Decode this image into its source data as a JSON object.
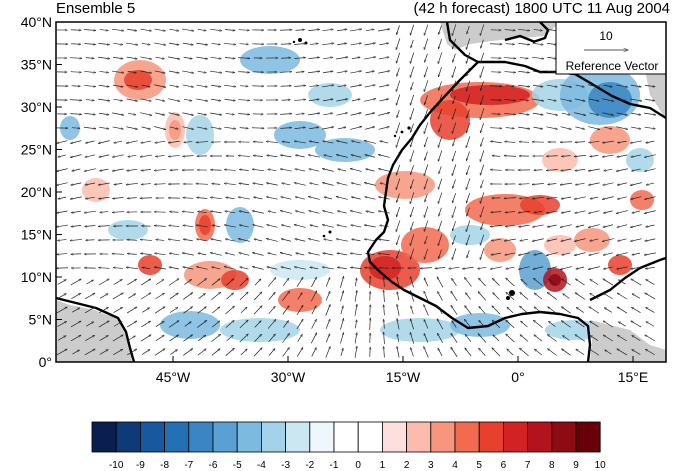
{
  "title_left": "Ensemble 5",
  "title_right": "(42 h forecast) 1800 UTC 11 Aug 2004",
  "lat_labels": [
    "40°N",
    "35°N",
    "30°N",
    "25°N",
    "20°N",
    "15°N",
    "10°N",
    "5°N",
    "0°"
  ],
  "lon_labels": [
    "45°W",
    "30°W",
    "15°W",
    "0°",
    "15°E"
  ],
  "reference_vector": {
    "magnitude": "10",
    "label": "Reference Vector"
  },
  "colorbar": {
    "labels": [
      "-10",
      "-9",
      "-8",
      "-7",
      "-6",
      "-5",
      "-4",
      "-3",
      "-2",
      "-1",
      "0",
      "1",
      "2",
      "3",
      "4",
      "5",
      "6",
      "7",
      "8",
      "9",
      "10"
    ],
    "colors": [
      "#0a1f4f",
      "#0e3a78",
      "#17589f",
      "#2470b5",
      "#3a86c4",
      "#5aa0d2",
      "#7cbadf",
      "#a3d3e8",
      "#cbe7f2",
      "#eef8fc",
      "#ffffff",
      "#ffffff",
      "#fde0dd",
      "#fbbcad",
      "#f7957d",
      "#f26a4f",
      "#e8402e",
      "#d22223",
      "#b3131c",
      "#8e0b14",
      "#670008"
    ]
  },
  "colors": {
    "land_outside": "#cccccc",
    "coast": "#000000",
    "frame": "#000000"
  }
}
